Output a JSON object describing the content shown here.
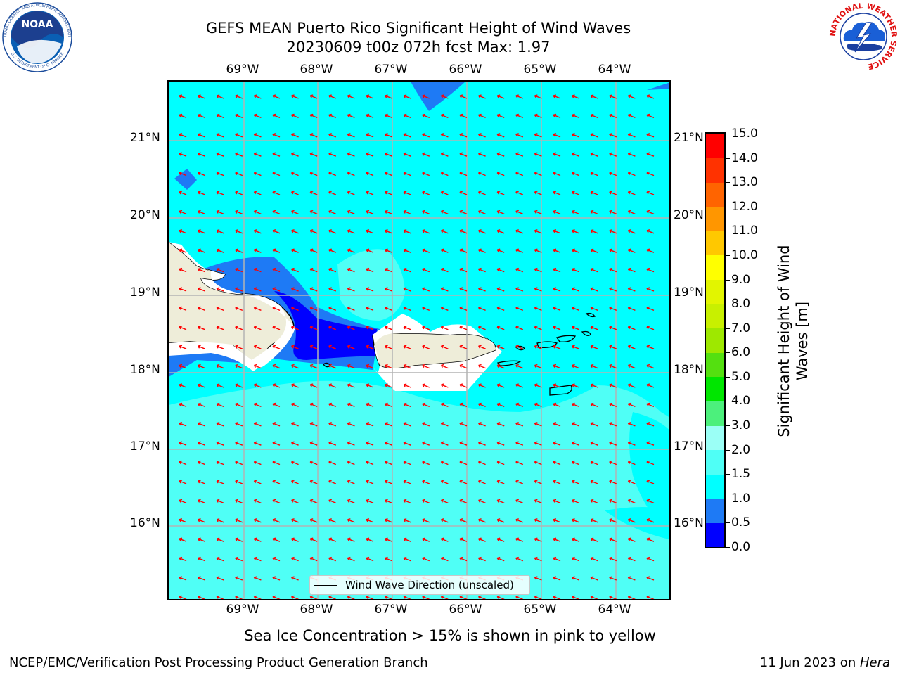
{
  "title_line1": "GEFS MEAN Puerto Rico Significant Height of Wind Waves",
  "title_line2": "20230609 t00z 072h fcst   Max: 1.97",
  "lon_labels": [
    "69°W",
    "68°W",
    "67°W",
    "66°W",
    "65°W",
    "64°W"
  ],
  "lat_labels": [
    "21°N",
    "20°N",
    "19°N",
    "18°N",
    "17°N",
    "16°N"
  ],
  "legend_label": "Wind Wave Direction (unscaled)",
  "colorbar": {
    "label": "Significant Height of Wind Waves [m]",
    "ticks": [
      "0.0",
      "0.5",
      "1.0",
      "1.5",
      "2.0",
      "3.0",
      "4.0",
      "5.0",
      "6.0",
      "7.0",
      "8.0",
      "9.0",
      "10.0",
      "11.0",
      "12.0",
      "13.0",
      "14.0",
      "15.0"
    ],
    "colors": [
      "#0000ff",
      "#1e7af5",
      "#00ffff",
      "#4ffff6",
      "#9bfff6",
      "#4cf07c",
      "#00e600",
      "#54e010",
      "#9ee800",
      "#c8f000",
      "#e2f500",
      "#ffff00",
      "#ffc800",
      "#ff9600",
      "#ff6400",
      "#ff3200",
      "#ff0000"
    ]
  },
  "colors": {
    "land": "#eeedd9",
    "arrow": "#ff0000",
    "grid": "#b4b4b4"
  },
  "sea_ice_note": "Sea Ice Concentration > 15% is shown in pink to yellow",
  "footer_left": "NCEP/EMC/Verification Post Processing Product Generation Branch",
  "footer_date": "11 Jun 2023 on ",
  "footer_host": "Hera",
  "logos": {
    "noaa_text": "NOAA",
    "noaa_ring": "NATIONAL OCEANIC AND ATMOSPHERIC ADMINISTRATION",
    "noaa_ring_bottom": "U.S. DEPARTMENT OF COMMERCE",
    "nws_ring": "NATIONAL WEATHER SERVICE"
  }
}
